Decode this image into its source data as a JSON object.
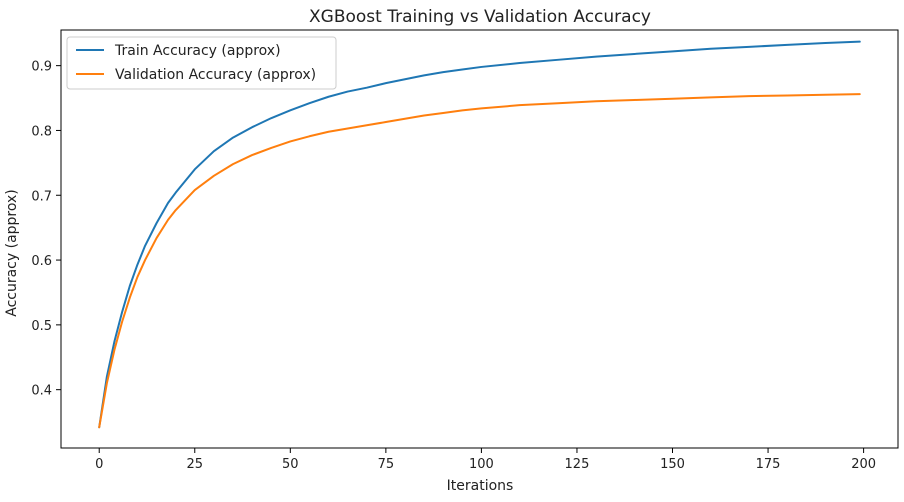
{
  "chart_data": {
    "type": "line",
    "title": "XGBoost Training vs Validation Accuracy",
    "xlabel": "Iterations",
    "ylabel": "Accuracy (approx)",
    "xlim": [
      -10,
      209
    ],
    "ylim": [
      0.31,
      0.955
    ],
    "xticks": [
      0,
      25,
      50,
      75,
      100,
      125,
      150,
      175,
      200
    ],
    "yticks": [
      0.4,
      0.5,
      0.6,
      0.7,
      0.8,
      0.9
    ],
    "grid": false,
    "legend_position": "top-left",
    "series": [
      {
        "name": "Train Accuracy (approx)",
        "color": "#1f77b4",
        "x": [
          0,
          2,
          4,
          6,
          8,
          10,
          12,
          15,
          18,
          20,
          25,
          30,
          35,
          40,
          45,
          50,
          55,
          60,
          65,
          70,
          75,
          80,
          85,
          90,
          95,
          100,
          110,
          120,
          130,
          140,
          150,
          160,
          170,
          180,
          190,
          199
        ],
        "y": [
          0.342,
          0.42,
          0.475,
          0.52,
          0.56,
          0.593,
          0.622,
          0.657,
          0.688,
          0.704,
          0.74,
          0.768,
          0.789,
          0.805,
          0.819,
          0.831,
          0.842,
          0.852,
          0.86,
          0.866,
          0.873,
          0.879,
          0.885,
          0.89,
          0.894,
          0.898,
          0.904,
          0.909,
          0.914,
          0.918,
          0.922,
          0.926,
          0.929,
          0.932,
          0.935,
          0.937
        ]
      },
      {
        "name": "Validation Accuracy (approx)",
        "color": "#ff7f0e",
        "x": [
          0,
          2,
          4,
          6,
          8,
          10,
          12,
          15,
          18,
          20,
          25,
          30,
          35,
          40,
          45,
          50,
          55,
          60,
          65,
          70,
          75,
          80,
          85,
          90,
          95,
          100,
          110,
          120,
          130,
          140,
          150,
          160,
          170,
          180,
          190,
          199
        ],
        "y": [
          0.342,
          0.41,
          0.462,
          0.505,
          0.542,
          0.574,
          0.6,
          0.634,
          0.662,
          0.677,
          0.708,
          0.73,
          0.748,
          0.762,
          0.773,
          0.783,
          0.791,
          0.798,
          0.803,
          0.808,
          0.813,
          0.818,
          0.823,
          0.827,
          0.831,
          0.834,
          0.839,
          0.842,
          0.845,
          0.847,
          0.849,
          0.851,
          0.853,
          0.854,
          0.855,
          0.856
        ]
      }
    ]
  }
}
